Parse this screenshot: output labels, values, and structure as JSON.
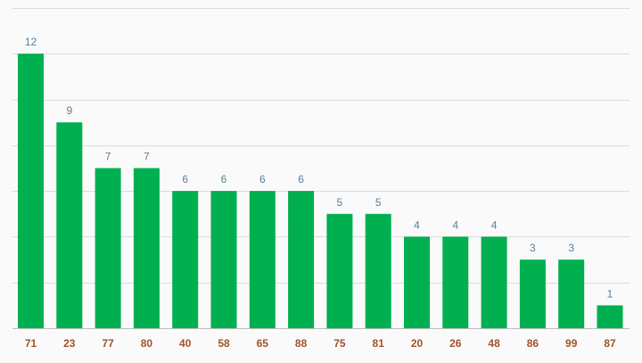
{
  "chart_data": {
    "type": "bar",
    "title": "",
    "xlabel": "",
    "ylabel": "",
    "categories": [
      "71",
      "23",
      "77",
      "80",
      "40",
      "58",
      "65",
      "88",
      "75",
      "81",
      "20",
      "26",
      "48",
      "86",
      "99",
      "87"
    ],
    "values": [
      12,
      9,
      7,
      7,
      6,
      6,
      6,
      6,
      5,
      5,
      4,
      4,
      4,
      3,
      3,
      1
    ],
    "ylim": [
      0,
      14
    ],
    "grid": true,
    "data_labels": true,
    "colors": {
      "bar": "#00b050",
      "value_label": "#5a7f99",
      "tick_label": "#a0522d",
      "grid": "#dcdcdc",
      "background": "#fafafa"
    }
  }
}
